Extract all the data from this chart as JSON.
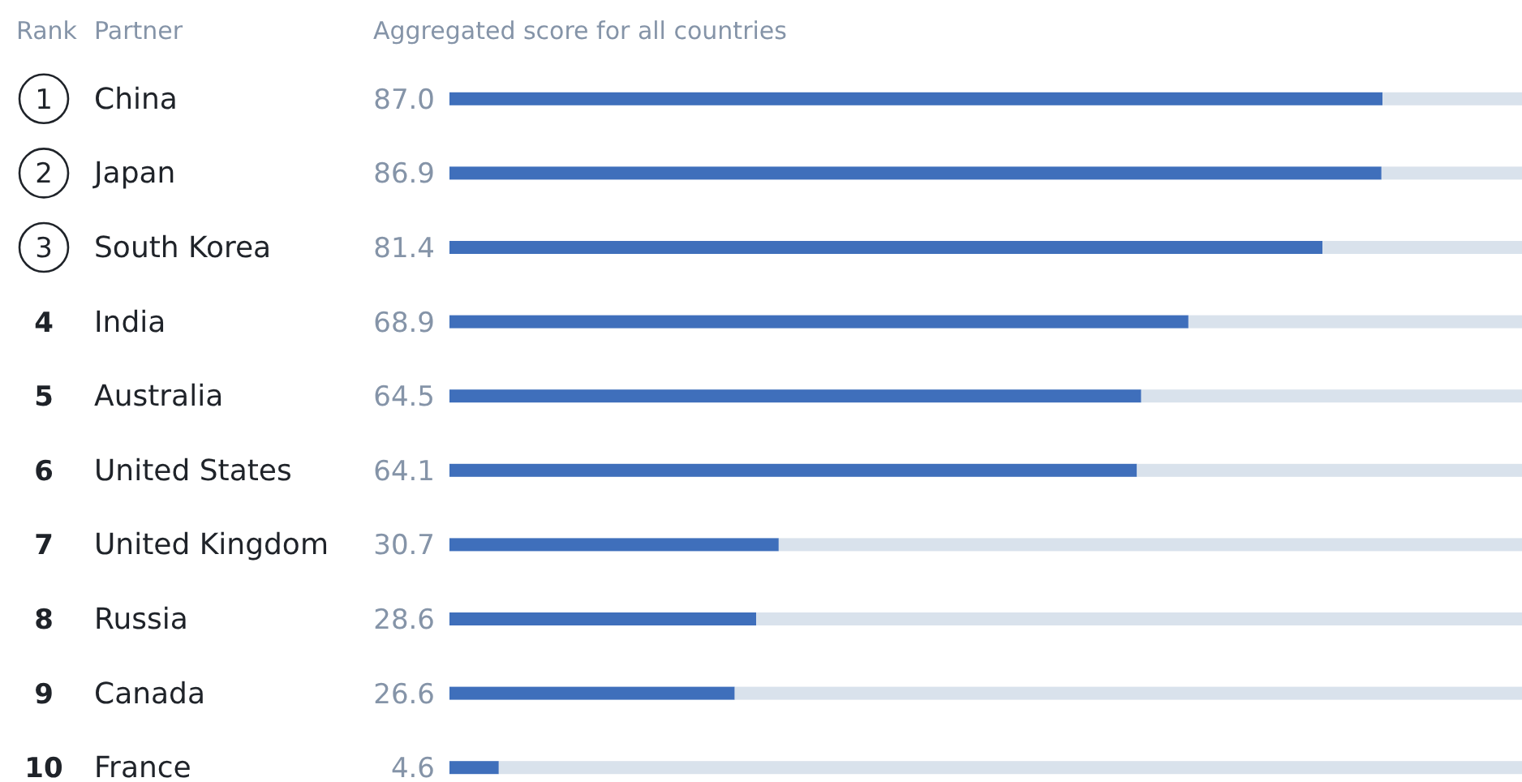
{
  "chart_data": {
    "type": "bar",
    "orientation": "horizontal",
    "stacked": true,
    "xlabel": "Aggregated score for all countries",
    "ylabel": "Partner",
    "categories": [
      "China",
      "Japan",
      "South Korea",
      "India",
      "Australia",
      "United States",
      "United Kingdom",
      "Russia",
      "Canada",
      "France"
    ],
    "series": [
      {
        "color": "#3f6fbb",
        "values": [
          87.0,
          86.9,
          81.4,
          68.9,
          64.5,
          64.1,
          30.7,
          28.6,
          26.6,
          4.6
        ],
        "value_labels": [
          "87.0",
          "86.9",
          "81.4",
          "68.9",
          "64.5",
          "64.1",
          "30.7",
          "28.6",
          "26.6",
          "4.6"
        ]
      },
      {
        "color": "#d9e2ec",
        "values": [
          13.0,
          13.1,
          18.6,
          31.1,
          35.5,
          35.9,
          69.3,
          71.4,
          73.4,
          95.4
        ]
      }
    ],
    "xlim": [
      0,
      100
    ],
    "annotations": [
      "Rank",
      "1",
      "2",
      "3",
      "4",
      "5",
      "6",
      "7",
      "8",
      "9",
      "10"
    ]
  }
}
